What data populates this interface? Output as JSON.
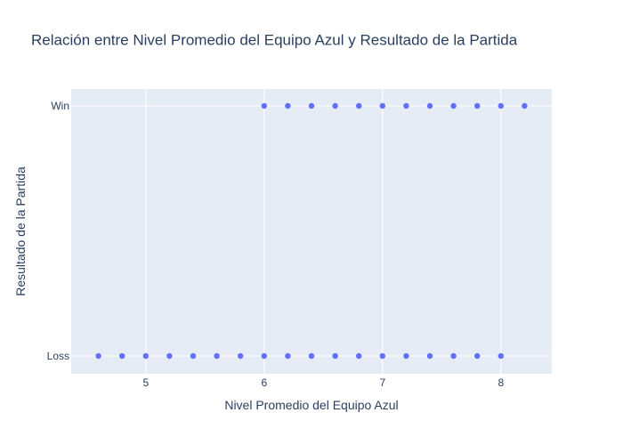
{
  "chart_data": {
    "type": "scatter",
    "title": "Relación entre Nivel Promedio del Equipo Azul y Resultado de la Partida",
    "xlabel": "Nivel Promedio del Equipo Azul",
    "ylabel": "Resultado de la Partida",
    "xlim": [
      4.37,
      8.43
    ],
    "x_ticks": [
      5,
      6,
      7,
      8
    ],
    "y_categories": [
      "Loss",
      "Win"
    ],
    "grid": true,
    "legend": "none",
    "colors": {
      "plot_background": "#e5ecf6",
      "marker": "#636efa",
      "text": "#2a3f5f"
    },
    "series": [
      {
        "points": [
          {
            "x": 4.6,
            "y": "Loss"
          },
          {
            "x": 4.8,
            "y": "Loss"
          },
          {
            "x": 5.0,
            "y": "Loss"
          },
          {
            "x": 5.2,
            "y": "Loss"
          },
          {
            "x": 5.4,
            "y": "Loss"
          },
          {
            "x": 5.6,
            "y": "Loss"
          },
          {
            "x": 5.8,
            "y": "Loss"
          },
          {
            "x": 6.0,
            "y": "Loss"
          },
          {
            "x": 6.2,
            "y": "Loss"
          },
          {
            "x": 6.4,
            "y": "Loss"
          },
          {
            "x": 6.6,
            "y": "Loss"
          },
          {
            "x": 6.8,
            "y": "Loss"
          },
          {
            "x": 7.0,
            "y": "Loss"
          },
          {
            "x": 7.2,
            "y": "Loss"
          },
          {
            "x": 7.4,
            "y": "Loss"
          },
          {
            "x": 7.6,
            "y": "Loss"
          },
          {
            "x": 7.8,
            "y": "Loss"
          },
          {
            "x": 8.0,
            "y": "Loss"
          },
          {
            "x": 6.0,
            "y": "Win"
          },
          {
            "x": 6.2,
            "y": "Win"
          },
          {
            "x": 6.4,
            "y": "Win"
          },
          {
            "x": 6.6,
            "y": "Win"
          },
          {
            "x": 6.8,
            "y": "Win"
          },
          {
            "x": 7.0,
            "y": "Win"
          },
          {
            "x": 7.2,
            "y": "Win"
          },
          {
            "x": 7.4,
            "y": "Win"
          },
          {
            "x": 7.6,
            "y": "Win"
          },
          {
            "x": 7.8,
            "y": "Win"
          },
          {
            "x": 8.0,
            "y": "Win"
          },
          {
            "x": 8.2,
            "y": "Win"
          }
        ]
      }
    ]
  }
}
